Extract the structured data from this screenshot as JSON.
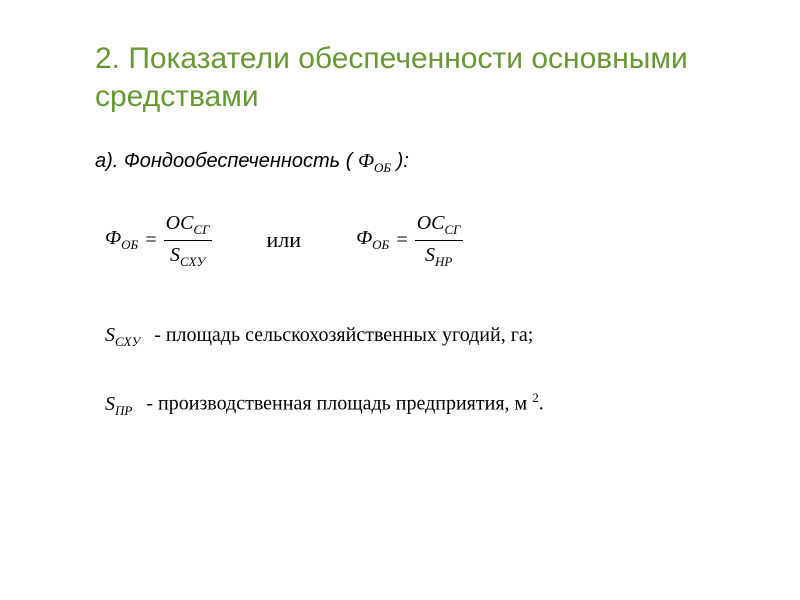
{
  "title": "2. Показатели обеспеченности основными средствами",
  "item_a_prefix": "а). Фондообеспеченность (",
  "item_a_suffix": "):",
  "symbols": {
    "phi_ob_html": "Ф<sub>ОБ</sub>",
    "oc_sg_html": "ОС<sub>СГ</sub>",
    "s_sxy_html": "S<sub>СХУ</sub>",
    "s_pr_html": "S<sub>ПР</sub>",
    "s_np_html": "S<sub>НР</sub>"
  },
  "or_word": "или",
  "equals": "=",
  "legend1": "- площадь сельскохозяйственных угодий, га;",
  "legend2_html": "- производственная площадь предприятия, м <sup>2</sup>.",
  "colors": {
    "title": "#669933",
    "text": "#000000",
    "bg": "#ffffff"
  }
}
